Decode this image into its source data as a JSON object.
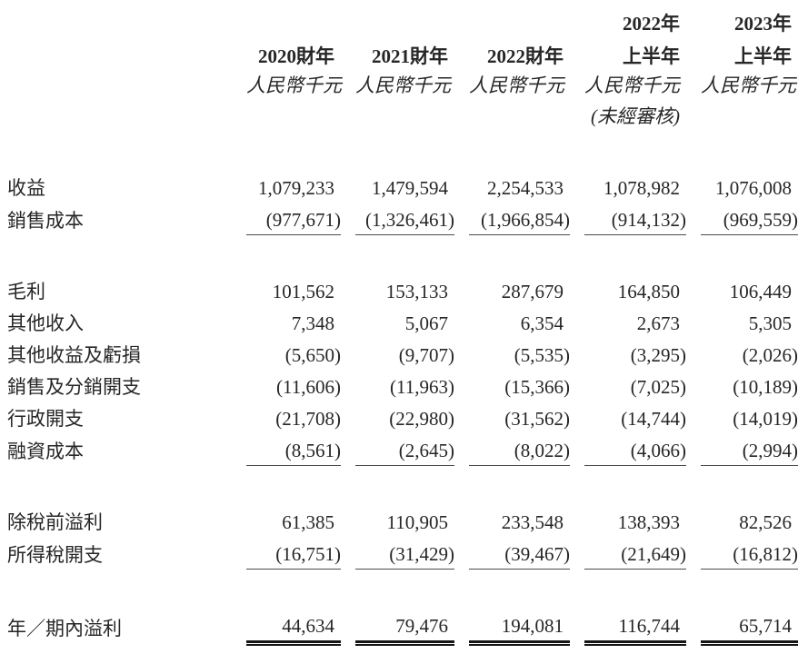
{
  "page": {
    "background": "#ffffff",
    "text_color": "#262626",
    "rule_color": "#4a4a4a",
    "total_rule_color": "#151515"
  },
  "table": {
    "columns": [
      {
        "line1": "",
        "line2": "2020財年",
        "unit": "人民幣千元",
        "note": ""
      },
      {
        "line1": "",
        "line2": "2021財年",
        "unit": "人民幣千元",
        "note": ""
      },
      {
        "line1": "",
        "line2": "2022財年",
        "unit": "人民幣千元",
        "note": ""
      },
      {
        "line1": "2022年",
        "line2": "上半年",
        "unit": "人民幣千元",
        "note": "(未經審核)"
      },
      {
        "line1": "2023年",
        "line2": "上半年",
        "unit": "人民幣千元",
        "note": ""
      }
    ],
    "rows": [
      {
        "label": "收益",
        "values": [
          "1,079,233",
          "1,479,594",
          "2,254,533",
          "1,078,982",
          "1,076,008"
        ],
        "rule": "none"
      },
      {
        "label": "銷售成本",
        "values": [
          "(977,671)",
          "(1,326,461)",
          "(1,966,854)",
          "(914,132)",
          "(969,559)"
        ],
        "rule": "single",
        "gap_after": true
      },
      {
        "label": "毛利",
        "values": [
          "101,562",
          "153,133",
          "287,679",
          "164,850",
          "106,449"
        ],
        "rule": "none"
      },
      {
        "label": "其他收入",
        "values": [
          "7,348",
          "5,067",
          "6,354",
          "2,673",
          "5,305"
        ],
        "rule": "none"
      },
      {
        "label": "其他收益及虧損",
        "values": [
          "(5,650)",
          "(9,707)",
          "(5,535)",
          "(3,295)",
          "(2,026)"
        ],
        "rule": "none"
      },
      {
        "label": "銷售及分銷開支",
        "values": [
          "(11,606)",
          "(11,963)",
          "(15,366)",
          "(7,025)",
          "(10,189)"
        ],
        "rule": "none"
      },
      {
        "label": "行政開支",
        "values": [
          "(21,708)",
          "(22,980)",
          "(31,562)",
          "(14,744)",
          "(14,019)"
        ],
        "rule": "none"
      },
      {
        "label": "融資成本",
        "values": [
          "(8,561)",
          "(2,645)",
          "(8,022)",
          "(4,066)",
          "(2,994)"
        ],
        "rule": "single",
        "gap_after": true
      },
      {
        "label": "除稅前溢利",
        "values": [
          "61,385",
          "110,905",
          "233,548",
          "138,393",
          "82,526"
        ],
        "rule": "none"
      },
      {
        "label": "所得稅開支",
        "values": [
          "(16,751)",
          "(31,429)",
          "(39,467)",
          "(21,649)",
          "(16,812)"
        ],
        "rule": "single",
        "gap_after": true
      },
      {
        "label": "年／期內溢利",
        "values": [
          "44,634",
          "79,476",
          "194,081",
          "116,744",
          "65,714"
        ],
        "rule": "double"
      }
    ]
  }
}
